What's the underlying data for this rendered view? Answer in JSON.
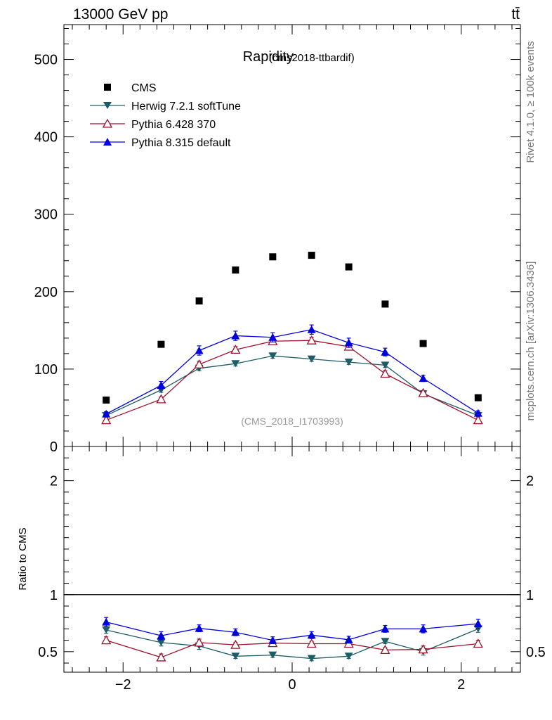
{
  "header": {
    "energy_label": "13000 GeV pp",
    "process_label": "tt̄"
  },
  "side": {
    "rivet_label": "Rivet 4.1.0, ≥ 100k events",
    "mcplots_label": "mcplots.cern.ch [arXiv:1306.3436]"
  },
  "colors": {
    "cms": "#000000",
    "herwig": "#1e5c66",
    "pythia6": "#a0122d",
    "pythia8": "#0000dd"
  },
  "chart_data": [
    {
      "type": "scatter",
      "panel": "main",
      "title": "Rapidity",
      "subtitle": "(cms2018-ttbardif)",
      "watermark": "(CMS_2018_I1703993)",
      "xlim": [
        -2.7,
        2.7
      ],
      "ylim": [
        0,
        545
      ],
      "ylabel": "",
      "xlabel": "",
      "yticks": [
        0,
        100,
        200,
        300,
        400,
        500
      ],
      "legend_position": "top-left",
      "x": [
        -2.2,
        -1.55,
        -1.1,
        -0.67,
        -0.23,
        0.23,
        0.67,
        1.1,
        1.55,
        2.2
      ],
      "series": [
        {
          "name": "CMS",
          "key": "cms",
          "marker": "square",
          "line": false,
          "values": [
            60,
            132,
            188,
            228,
            245,
            247,
            232,
            184,
            133,
            63
          ],
          "errors": [
            0,
            0,
            0,
            0,
            0,
            0,
            0,
            0,
            0,
            0
          ]
        },
        {
          "name": "Herwig 7.2.1 softTune",
          "key": "herwig",
          "marker": "triangle-down",
          "line": true,
          "values": [
            40,
            73,
            101,
            107,
            117,
            113,
            109,
            105,
            68,
            40
          ],
          "errors": [
            2,
            3,
            3,
            3,
            3,
            3,
            3,
            3,
            3,
            2
          ]
        },
        {
          "name": "Pythia 6.428 370",
          "key": "pythia6",
          "marker": "triangle-up-open",
          "line": true,
          "values": [
            34,
            61,
            106,
            125,
            136,
            137,
            129,
            94,
            69,
            34
          ],
          "errors": [
            2,
            3,
            4,
            4,
            4,
            4,
            4,
            4,
            3,
            2
          ]
        },
        {
          "name": "Pythia 8.315 default",
          "key": "pythia8",
          "marker": "triangle-up",
          "line": true,
          "values": [
            42,
            79,
            124,
            143,
            141,
            151,
            134,
            122,
            88,
            43
          ],
          "errors": [
            3,
            5,
            6,
            6,
            6,
            6,
            6,
            5,
            4,
            3
          ]
        }
      ]
    },
    {
      "type": "scatter",
      "panel": "ratio",
      "ylabel": "Ratio to CMS",
      "xlim": [
        -2.7,
        2.7
      ],
      "ylim": [
        0.32,
        2.3
      ],
      "yticks": [
        0.5,
        1,
        2
      ],
      "ytick_labels": [
        "0.5",
        "1",
        "2"
      ],
      "xticks": [
        -2,
        0,
        2
      ],
      "xtick_labels": [
        "−2",
        "0",
        "2"
      ],
      "reference_line": 1,
      "x": [
        -2.2,
        -1.55,
        -1.1,
        -0.67,
        -0.23,
        0.23,
        0.67,
        1.1,
        1.55,
        2.2
      ],
      "series": [
        {
          "name": "Herwig 7.2.1 softTune",
          "key": "herwig",
          "marker": "triangle-down",
          "values": [
            0.69,
            0.58,
            0.55,
            0.46,
            0.47,
            0.44,
            0.46,
            0.59,
            0.5,
            0.7
          ],
          "errors": [
            0.03,
            0.03,
            0.03,
            0.02,
            0.02,
            0.02,
            0.02,
            0.02,
            0.03,
            0.03
          ]
        },
        {
          "name": "Pythia 6.428 370",
          "key": "pythia6",
          "marker": "triangle-up-open",
          "values": [
            0.6,
            0.45,
            0.58,
            0.56,
            0.575,
            0.57,
            0.57,
            0.515,
            0.52,
            0.57
          ],
          "errors": [
            0.03,
            0.03,
            0.03,
            0.02,
            0.02,
            0.02,
            0.02,
            0.02,
            0.03,
            0.03
          ]
        },
        {
          "name": "Pythia 8.315 default",
          "key": "pythia8",
          "marker": "triangle-up",
          "values": [
            0.76,
            0.64,
            0.705,
            0.67,
            0.6,
            0.645,
            0.605,
            0.7,
            0.7,
            0.745
          ],
          "errors": [
            0.04,
            0.035,
            0.03,
            0.03,
            0.03,
            0.03,
            0.03,
            0.03,
            0.035,
            0.04
          ]
        }
      ]
    }
  ]
}
